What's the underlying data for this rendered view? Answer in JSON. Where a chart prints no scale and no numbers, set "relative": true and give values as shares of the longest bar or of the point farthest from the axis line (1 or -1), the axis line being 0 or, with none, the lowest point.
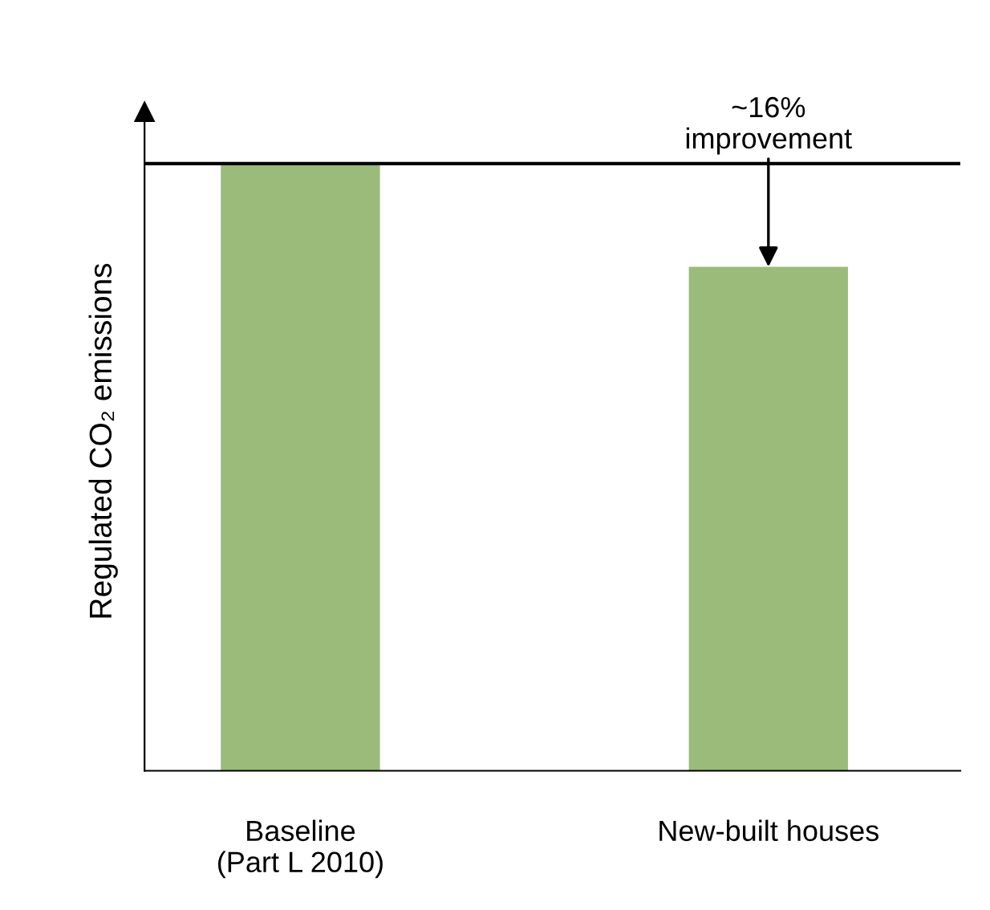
{
  "chart_data": {
    "type": "bar",
    "relative": true,
    "categories": [
      "Baseline\n(Part L 2010)",
      "New-built houses"
    ],
    "values": [
      1,
      0.83
    ],
    "color": "#9bbb7a",
    "ylabel": "Regulated CO₂ emissions",
    "ref_lines": [
      {
        "axis": "y",
        "value": 1,
        "color": "#000000"
      }
    ],
    "annotations": [
      {
        "text": "~16%\nimprovement",
        "x": "New-built houses",
        "y": 0.83
      }
    ],
    "grid": false,
    "legend": false
  }
}
